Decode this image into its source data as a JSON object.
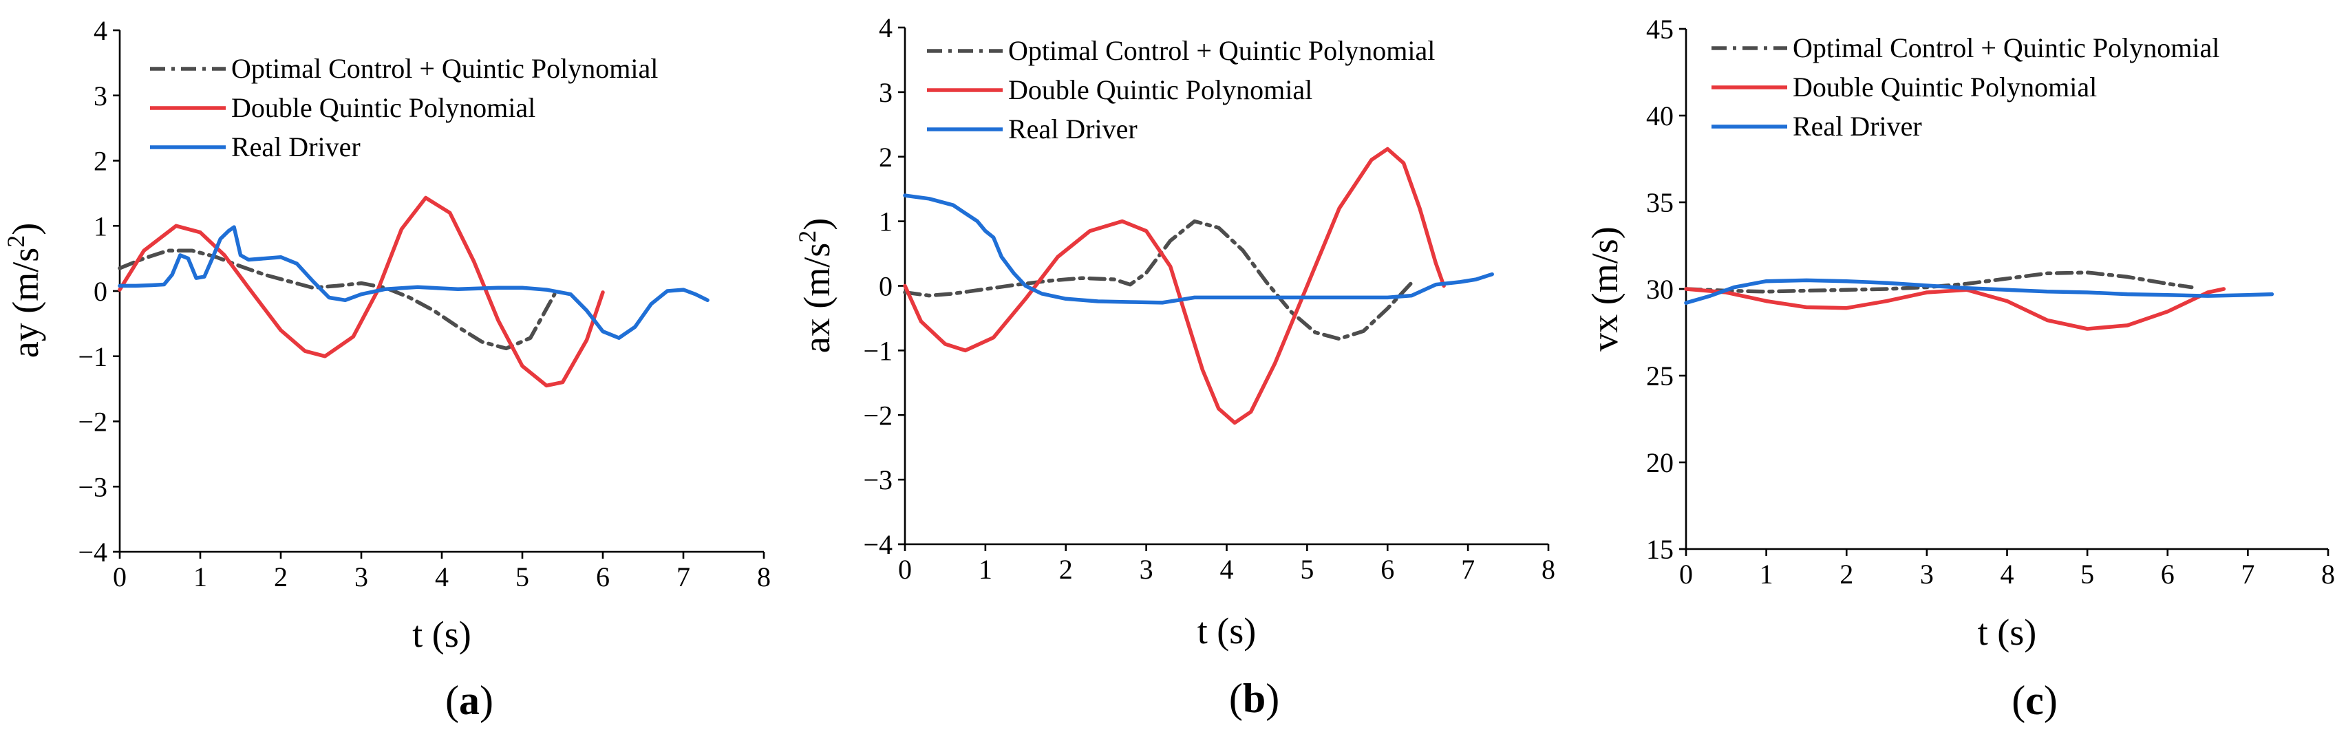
{
  "chart_data": [
    {
      "type": "line",
      "panel_label": "a",
      "xlabel": "t (s)",
      "ylabel_base": "ay (m/s",
      "ylabel_sup": "2",
      "ylabel_end": ")",
      "xlim": [
        0,
        8
      ],
      "ylim": [
        -4,
        4
      ],
      "xticks": [
        0,
        1,
        2,
        3,
        4,
        5,
        6,
        7,
        8
      ],
      "yticks": [
        -4,
        -3,
        -2,
        -1,
        0,
        1,
        2,
        3,
        4
      ],
      "xtick_labels": [
        "0",
        "1",
        "2",
        "3",
        "4",
        "5",
        "6",
        "7",
        "8"
      ],
      "ytick_labels": [
        "−4",
        "−3",
        "−2",
        "−1",
        "0",
        "1",
        "2",
        "3",
        "4"
      ],
      "series": [
        {
          "name": "Optimal Control + Quintic Polynomial",
          "color": "#4d4d4d",
          "style": "dashdot",
          "x": [
            0,
            0.3,
            0.6,
            0.9,
            1.2,
            1.5,
            1.8,
            2.1,
            2.4,
            2.7,
            3.0,
            3.3,
            3.6,
            3.9,
            4.2,
            4.5,
            4.8,
            5.1,
            5.4
          ],
          "y": [
            0.35,
            0.5,
            0.62,
            0.62,
            0.52,
            0.38,
            0.25,
            0.15,
            0.05,
            0.08,
            0.12,
            0.05,
            -0.1,
            -0.3,
            -0.55,
            -0.78,
            -0.88,
            -0.72,
            -0.05
          ]
        },
        {
          "name": "Double Quintic Polynomial",
          "color": "#e8383d",
          "style": "solid",
          "x": [
            0,
            0.3,
            0.7,
            1.0,
            1.3,
            1.6,
            2.0,
            2.3,
            2.55,
            2.9,
            3.2,
            3.5,
            3.8,
            4.1,
            4.4,
            4.7,
            5.0,
            5.3,
            5.5,
            5.8,
            6.0
          ],
          "y": [
            0.02,
            0.62,
            1.0,
            0.9,
            0.55,
            0.05,
            -0.6,
            -0.92,
            -1.0,
            -0.7,
            0.0,
            0.95,
            1.43,
            1.2,
            0.45,
            -0.45,
            -1.15,
            -1.45,
            -1.4,
            -0.75,
            -0.02
          ]
        },
        {
          "name": "Real Driver",
          "color": "#1f6fd6",
          "style": "solid",
          "x": [
            0,
            0.2,
            0.4,
            0.55,
            0.65,
            0.75,
            0.85,
            0.95,
            1.05,
            1.15,
            1.25,
            1.35,
            1.42,
            1.5,
            1.6,
            1.8,
            2.0,
            2.2,
            2.4,
            2.6,
            2.8,
            3.0,
            3.3,
            3.7,
            4.2,
            4.7,
            5.0,
            5.3,
            5.6,
            5.8,
            6.0,
            6.2,
            6.4,
            6.6,
            6.8,
            7.0,
            7.15,
            7.3
          ],
          "y": [
            0.08,
            0.08,
            0.09,
            0.1,
            0.25,
            0.55,
            0.5,
            0.2,
            0.22,
            0.5,
            0.8,
            0.92,
            0.98,
            0.55,
            0.48,
            0.5,
            0.52,
            0.42,
            0.15,
            -0.1,
            -0.14,
            -0.05,
            0.03,
            0.06,
            0.03,
            0.05,
            0.05,
            0.02,
            -0.05,
            -0.3,
            -0.62,
            -0.72,
            -0.55,
            -0.2,
            0.0,
            0.02,
            -0.05,
            -0.14
          ]
        }
      ]
    },
    {
      "type": "line",
      "panel_label": "b",
      "xlabel": "t (s)",
      "ylabel_base": "ax (m/s",
      "ylabel_sup": "2",
      "ylabel_end": ")",
      "xlim": [
        0,
        8
      ],
      "ylim": [
        -4,
        4
      ],
      "xticks": [
        0,
        1,
        2,
        3,
        4,
        5,
        6,
        7,
        8
      ],
      "yticks": [
        -4,
        -3,
        -2,
        -1,
        0,
        1,
        2,
        3,
        4
      ],
      "xtick_labels": [
        "0",
        "1",
        "2",
        "3",
        "4",
        "5",
        "6",
        "7",
        "8"
      ],
      "ytick_labels": [
        "−4",
        "−3",
        "−2",
        "−1",
        "0",
        "1",
        "2",
        "3",
        "4"
      ],
      "series": [
        {
          "name": "Optimal Control + Quintic Polynomial",
          "color": "#4d4d4d",
          "style": "dashdot",
          "x": [
            0,
            0.3,
            0.6,
            1.0,
            1.4,
            1.8,
            2.2,
            2.6,
            2.8,
            3.0,
            3.3,
            3.6,
            3.9,
            4.2,
            4.5,
            4.8,
            5.1,
            5.4,
            5.7,
            6.0,
            6.3
          ],
          "y": [
            -0.1,
            -0.15,
            -0.12,
            -0.05,
            0.02,
            0.08,
            0.12,
            0.1,
            0.02,
            0.2,
            0.7,
            1.0,
            0.9,
            0.55,
            0.05,
            -0.4,
            -0.72,
            -0.82,
            -0.7,
            -0.35,
            0.05
          ]
        },
        {
          "name": "Double Quintic Polynomial",
          "color": "#e8383d",
          "style": "solid",
          "x": [
            0,
            0.2,
            0.5,
            0.75,
            1.1,
            1.5,
            1.9,
            2.3,
            2.7,
            3.0,
            3.3,
            3.45,
            3.7,
            3.9,
            4.1,
            4.3,
            4.6,
            5.0,
            5.4,
            5.8,
            6.0,
            6.2,
            6.4,
            6.6,
            6.7
          ],
          "y": [
            0.0,
            -0.55,
            -0.9,
            -1.0,
            -0.8,
            -0.2,
            0.45,
            0.85,
            1.0,
            0.85,
            0.3,
            -0.3,
            -1.3,
            -1.9,
            -2.12,
            -1.95,
            -1.2,
            0.0,
            1.2,
            1.95,
            2.12,
            1.9,
            1.2,
            0.35,
            0.0
          ]
        },
        {
          "name": "Real Driver",
          "color": "#1f6fd6",
          "style": "solid",
          "x": [
            0,
            0.3,
            0.6,
            0.9,
            1.0,
            1.1,
            1.2,
            1.35,
            1.5,
            1.7,
            2.0,
            2.4,
            2.8,
            3.2,
            3.4,
            3.6,
            4.0,
            4.5,
            5.0,
            5.5,
            6.0,
            6.3,
            6.6,
            6.9,
            7.1,
            7.3
          ],
          "y": [
            1.4,
            1.35,
            1.25,
            1.0,
            0.85,
            0.75,
            0.45,
            0.2,
            0.0,
            -0.12,
            -0.2,
            -0.24,
            -0.25,
            -0.26,
            -0.22,
            -0.18,
            -0.18,
            -0.18,
            -0.18,
            -0.18,
            -0.18,
            -0.15,
            0.02,
            0.06,
            0.1,
            0.18
          ]
        }
      ]
    },
    {
      "type": "line",
      "panel_label": "c",
      "xlabel": "t (s)",
      "ylabel_base": "vx (m/s)",
      "ylabel_sup": "",
      "ylabel_end": "",
      "xlim": [
        0,
        8
      ],
      "ylim": [
        15,
        45
      ],
      "xticks": [
        0,
        1,
        2,
        3,
        4,
        5,
        6,
        7,
        8
      ],
      "yticks": [
        15,
        20,
        25,
        30,
        35,
        40,
        45
      ],
      "xtick_labels": [
        "0",
        "1",
        "2",
        "3",
        "4",
        "5",
        "6",
        "7",
        "8"
      ],
      "ytick_labels": [
        "15",
        "20",
        "25",
        "30",
        "35",
        "40",
        "45"
      ],
      "series": [
        {
          "name": "Optimal Control + Quintic Polynomial",
          "color": "#4d4d4d",
          "style": "dashdot",
          "x": [
            0,
            0.5,
            1.0,
            1.5,
            2.0,
            2.5,
            3.0,
            3.5,
            4.0,
            4.5,
            5.0,
            5.5,
            6.0,
            6.3
          ],
          "y": [
            30.0,
            29.9,
            29.85,
            29.9,
            29.95,
            30.0,
            30.1,
            30.3,
            30.6,
            30.9,
            30.95,
            30.7,
            30.3,
            30.1
          ]
        },
        {
          "name": "Double Quintic Polynomial",
          "color": "#e8383d",
          "style": "solid",
          "x": [
            0,
            0.5,
            1.0,
            1.5,
            2.0,
            2.5,
            3.0,
            3.5,
            4.0,
            4.5,
            5.0,
            5.5,
            6.0,
            6.5,
            6.7
          ],
          "y": [
            30.0,
            29.8,
            29.3,
            28.95,
            28.9,
            29.3,
            29.8,
            29.95,
            29.3,
            28.2,
            27.7,
            27.9,
            28.7,
            29.8,
            30.0
          ]
        },
        {
          "name": "Real Driver",
          "color": "#1f6fd6",
          "style": "solid",
          "x": [
            0,
            0.3,
            0.6,
            1.0,
            1.5,
            2.0,
            2.5,
            3.0,
            3.5,
            4.0,
            4.5,
            5.0,
            5.5,
            6.0,
            6.5,
            7.0,
            7.3
          ],
          "y": [
            29.2,
            29.6,
            30.1,
            30.45,
            30.5,
            30.45,
            30.35,
            30.2,
            30.05,
            29.95,
            29.85,
            29.8,
            29.7,
            29.65,
            29.6,
            29.65,
            29.7
          ]
        }
      ]
    }
  ]
}
